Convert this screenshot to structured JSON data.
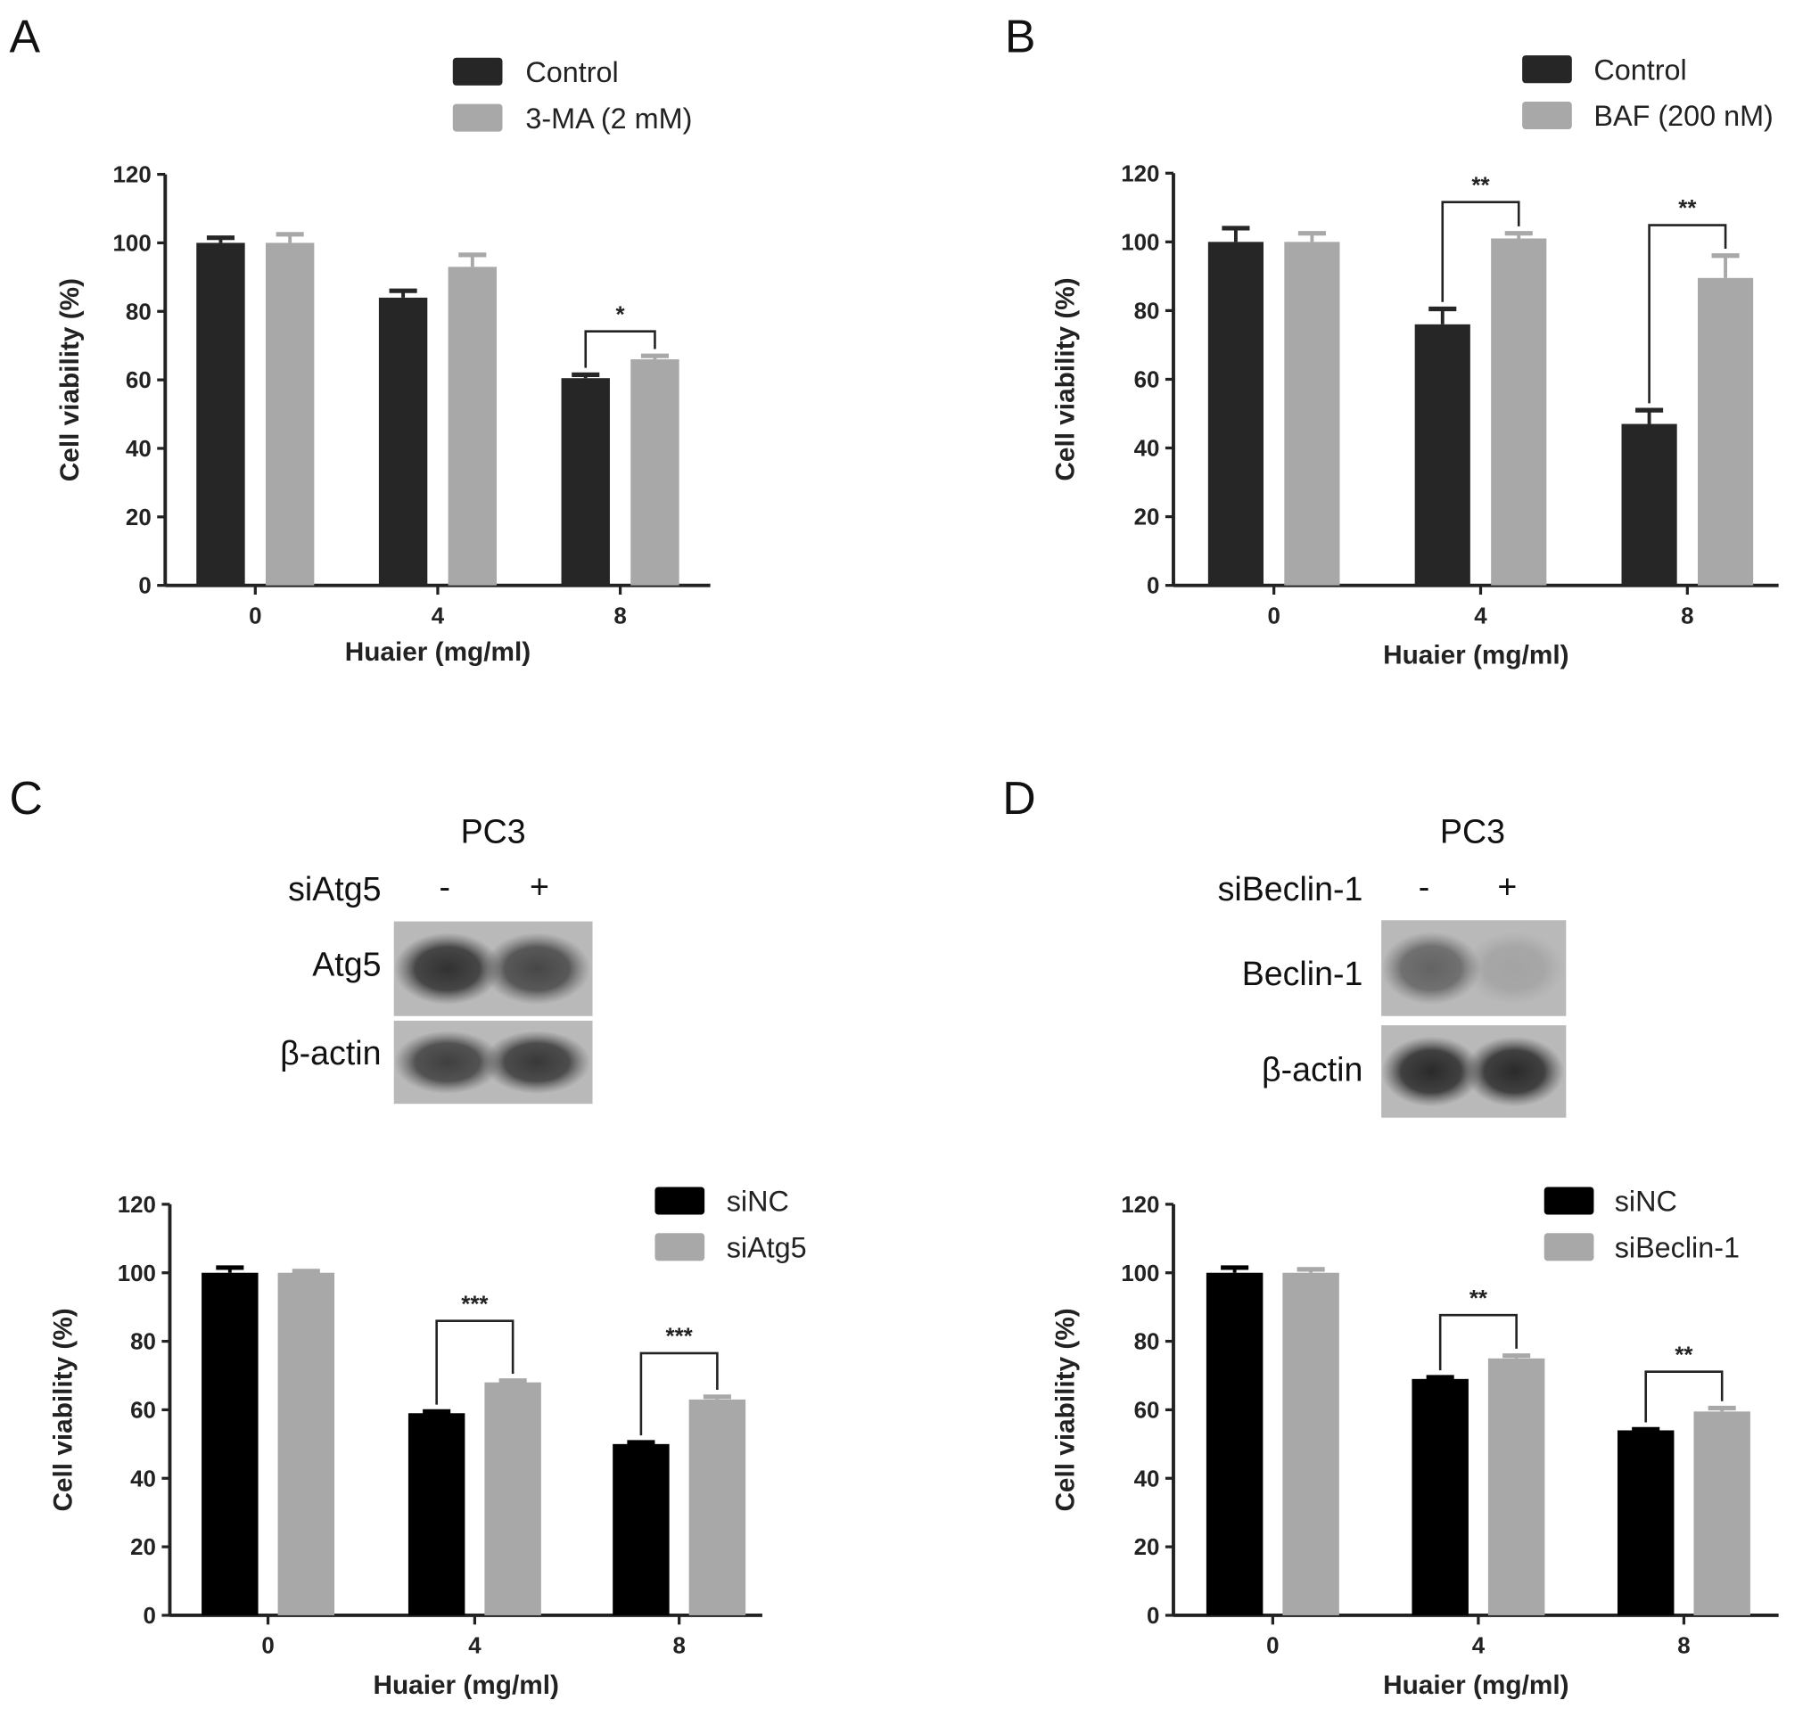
{
  "panels": {
    "A": {
      "letter": "A"
    },
    "B": {
      "letter": "B"
    },
    "C": {
      "letter": "C",
      "blot": {
        "cell_line": "PC3",
        "treatment": "siAtg5",
        "lanes": [
          "-",
          "+"
        ],
        "rows": [
          "Atg5",
          "β-actin"
        ],
        "intensity": [
          [
            0.95,
            0.8
          ],
          [
            0.85,
            0.9
          ]
        ]
      }
    },
    "D": {
      "letter": "D",
      "blot": {
        "cell_line": "PC3",
        "treatment": "siBeclin-1",
        "lanes": [
          "-",
          "+"
        ],
        "rows": [
          "Beclin-1",
          "β-actin"
        ],
        "intensity": [
          [
            0.6,
            0.15
          ],
          [
            1.0,
            1.0
          ]
        ]
      }
    }
  },
  "chart_data": [
    {
      "id": "A",
      "type": "bar",
      "title": "",
      "xlabel": "Huaier (mg/ml)",
      "ylabel": "Cell viability (%)",
      "categories": [
        "0",
        "4",
        "8"
      ],
      "ylim": [
        0,
        120
      ],
      "yticks": [
        0,
        20,
        40,
        60,
        80,
        100,
        120
      ],
      "legend": "top-right",
      "grid": false,
      "series": [
        {
          "name": "Control",
          "color": "#262626",
          "values": [
            100,
            84,
            60.5
          ],
          "errors": [
            1.5,
            2,
            1
          ]
        },
        {
          "name": "3-MA (2 mM)",
          "color": "#a8a8a8",
          "values": [
            100,
            93,
            66
          ],
          "errors": [
            2.5,
            3.5,
            1
          ]
        }
      ],
      "significance": [
        {
          "category": "8",
          "label": "*"
        }
      ]
    },
    {
      "id": "B",
      "type": "bar",
      "title": "",
      "xlabel": "Huaier (mg/ml)",
      "ylabel": "Cell viability (%)",
      "categories": [
        "0",
        "4",
        "8"
      ],
      "ylim": [
        0,
        120
      ],
      "yticks": [
        0,
        20,
        40,
        60,
        80,
        100,
        120
      ],
      "legend": "top-right",
      "grid": false,
      "series": [
        {
          "name": "Control",
          "color": "#262626",
          "values": [
            100,
            76,
            47
          ],
          "errors": [
            4,
            4.5,
            4
          ]
        },
        {
          "name": "BAF (200 nM)",
          "color": "#a8a8a8",
          "values": [
            100,
            101,
            89.5
          ],
          "errors": [
            2.5,
            1.5,
            6.5
          ]
        }
      ],
      "significance": [
        {
          "category": "4",
          "label": "**"
        },
        {
          "category": "8",
          "label": "**"
        }
      ]
    },
    {
      "id": "C",
      "type": "bar",
      "title": "",
      "xlabel": "Huaier (mg/ml)",
      "ylabel": "Cell viability (%)",
      "categories": [
        "0",
        "4",
        "8"
      ],
      "ylim": [
        0,
        120
      ],
      "yticks": [
        0,
        20,
        40,
        60,
        80,
        100,
        120
      ],
      "legend": "top-right",
      "grid": false,
      "series": [
        {
          "name": "siNC",
          "color": "#000000",
          "values": [
            100,
            59,
            50
          ],
          "errors": [
            1.5,
            0.5,
            0.5
          ]
        },
        {
          "name": "siAtg5",
          "color": "#a8a8a8",
          "values": [
            100,
            68,
            63
          ],
          "errors": [
            0.5,
            0.5,
            0.8
          ]
        }
      ],
      "significance": [
        {
          "category": "4",
          "label": "***"
        },
        {
          "category": "8",
          "label": "***"
        }
      ]
    },
    {
      "id": "D",
      "type": "bar",
      "title": "",
      "xlabel": "Huaier (mg/ml)",
      "ylabel": "Cell viability (%)",
      "categories": [
        "0",
        "4",
        "8"
      ],
      "ylim": [
        0,
        120
      ],
      "yticks": [
        0,
        20,
        40,
        60,
        80,
        100,
        120
      ],
      "legend": "top-right",
      "grid": false,
      "series": [
        {
          "name": "siNC",
          "color": "#000000",
          "values": [
            100,
            69,
            54
          ],
          "errors": [
            1.5,
            0.5,
            0.3
          ]
        },
        {
          "name": "siBeclin-1",
          "color": "#a8a8a8",
          "values": [
            100,
            75,
            59.5
          ],
          "errors": [
            1,
            0.8,
            1
          ]
        }
      ],
      "significance": [
        {
          "category": "4",
          "label": "**"
        },
        {
          "category": "8",
          "label": "**"
        }
      ]
    }
  ]
}
